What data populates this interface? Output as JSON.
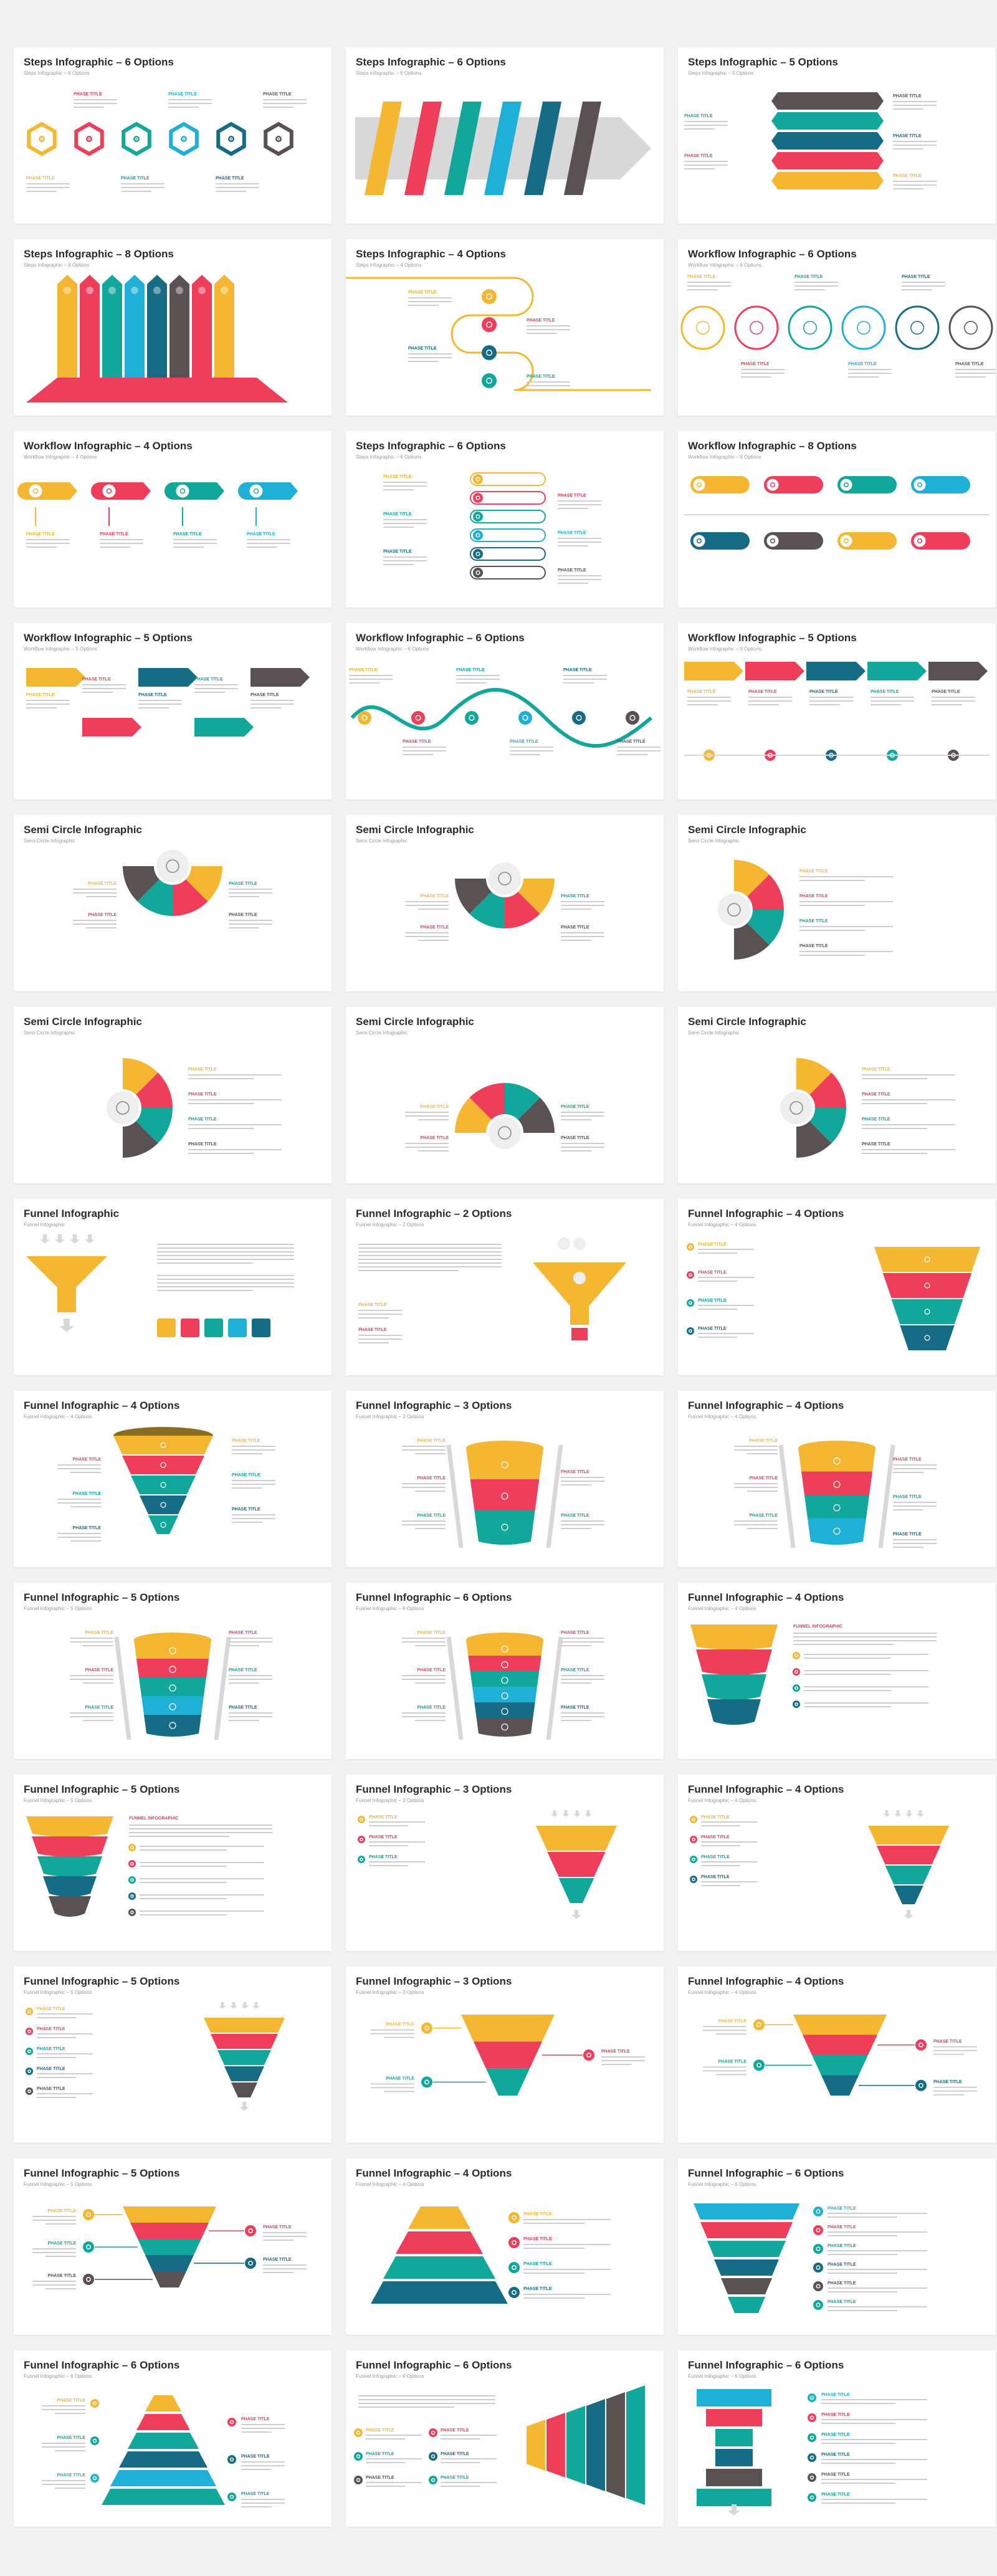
{
  "colors": {
    "yellow": "#f5b731",
    "red": "#ee3e5a",
    "teal": "#11a79a",
    "blue": "#1fb0d8",
    "navy": "#156c84",
    "gray": "#5a5153",
    "lightgray": "#d8d8d8"
  },
  "labels": {
    "phase_title": "PHASE TITLE",
    "funnel_infographic": "FUNNEL INFOGRAPHIC"
  },
  "slides": [
    {
      "title": "Steps Infographic – 6 Options",
      "subtitle": "Steps Infographic – 6 Options",
      "art": "hex-steps"
    },
    {
      "title": "Steps Infographic – 6 Options",
      "subtitle": "Steps Infographic – 6 Options",
      "art": "ribbon-arrow"
    },
    {
      "title": "Steps Infographic – 5 Options",
      "subtitle": "Steps Infographic – 5 Options",
      "art": "stack-bars"
    },
    {
      "title": "Steps Infographic – 8 Options",
      "subtitle": "Steps Infographic – 8 Options",
      "art": "tall-arrows"
    },
    {
      "title": "Steps Infographic – 4 Options",
      "subtitle": "Steps Infographic – 4 Options",
      "art": "snake-numbers"
    },
    {
      "title": "Workflow Infographic – 6 Options",
      "subtitle": "Workflow Infographic – 6 Options",
      "art": "ring-chain"
    },
    {
      "title": "Workflow Infographic – 4 Options",
      "subtitle": "Workflow Infographic – 4 Options",
      "art": "pin-tabs"
    },
    {
      "title": "Steps Infographic – 6 Options",
      "subtitle": "Steps Infographic – 6 Options",
      "art": "snake-six"
    },
    {
      "title": "Workflow Infographic – 8 Options",
      "subtitle": "Workflow Infographic – 8 Options",
      "art": "pill-rows"
    },
    {
      "title": "Workflow Infographic – 5 Options",
      "subtitle": "Workflow Infographic – 5 Options",
      "art": "zigzag-arrows"
    },
    {
      "title": "Workflow Infographic – 6 Options",
      "subtitle": "Workflow Infographic – 6 Options",
      "art": "wave-flow"
    },
    {
      "title": "Workflow Infographic – 5 Options",
      "subtitle": "Workflow Infographic – 5 Options",
      "art": "arrow-row"
    },
    {
      "title": "Semi Circle Infographic",
      "subtitle": "Semi Circle Infographic",
      "art": "semi-down"
    },
    {
      "title": "Semi Circle Infographic",
      "subtitle": "Semi Circle Infographic",
      "art": "semi-down-2"
    },
    {
      "title": "Semi Circle Infographic",
      "subtitle": "Semi Circle Infographic",
      "art": "semi-right"
    },
    {
      "title": "Semi Circle Infographic",
      "subtitle": "Semi Circle Infographic",
      "art": "semi-right-2"
    },
    {
      "title": "Semi Circle Infographic",
      "subtitle": "Semi Circle Infographic",
      "art": "semi-up"
    },
    {
      "title": "Semi Circle Infographic",
      "subtitle": "Semi Circle Infographic",
      "art": "semi-right-3"
    },
    {
      "title": "Funnel Infographic",
      "subtitle": "Funnel Infographic",
      "art": "funnel-pour"
    },
    {
      "title": "Funnel Infographic – 2 Options",
      "subtitle": "Funnel Infographic – 2 Options",
      "art": "funnel-balls"
    },
    {
      "title": "Funnel Infographic – 4 Options",
      "subtitle": "Funnel Infographic – 4 Options",
      "art": "funnel-layers-right"
    },
    {
      "title": "Funnel Infographic – 4 Options",
      "subtitle": "Funnel Infographic – 4 Options",
      "art": "funnel-cone"
    },
    {
      "title": "Funnel Infographic – 3 Options",
      "subtitle": "Funnel Infographic – 3 Options",
      "art": "funnel-cup-3"
    },
    {
      "title": "Funnel Infographic – 4 Options",
      "subtitle": "Funnel Infographic – 4 Options",
      "art": "funnel-cup-4"
    },
    {
      "title": "Funnel Infographic – 5 Options",
      "subtitle": "Funnel Infographic – 5 Options",
      "art": "funnel-cup-5"
    },
    {
      "title": "Funnel Infographic – 6 Options",
      "subtitle": "Funnel Infographic – 6 Options",
      "art": "funnel-cup-6"
    },
    {
      "title": "Funnel Infographic – 4 Options",
      "subtitle": "Funnel Infographic – 4 Options",
      "art": "funnel-shields"
    },
    {
      "title": "Funnel Infographic – 5 Options",
      "subtitle": "Funnel Infographic – 5 Options",
      "art": "funnel-shields-5"
    },
    {
      "title": "Funnel Infographic – 3 Options",
      "subtitle": "Funnel Infographic – 3 Options",
      "art": "funnel-tri-3"
    },
    {
      "title": "Funnel Infographic – 4 Options",
      "subtitle": "Funnel Infographic – 4 Options",
      "art": "funnel-tri-4"
    },
    {
      "title": "Funnel Infographic – 5 Options",
      "subtitle": "Funnel Infographic – 5 Options",
      "art": "funnel-tri-5"
    },
    {
      "title": "Funnel Infographic – 3 Options",
      "subtitle": "Funnel Infographic – 3 Options",
      "art": "funnel-bowl-3"
    },
    {
      "title": "Funnel Infographic – 4 Options",
      "subtitle": "Funnel Infographic – 4 Options",
      "art": "funnel-bowl-4"
    },
    {
      "title": "Funnel Infographic – 5 Options",
      "subtitle": "Funnel Infographic – 5 Options",
      "art": "funnel-bowl-5"
    },
    {
      "title": "Funnel Infographic – 4 Options",
      "subtitle": "Funnel Infographic – 4 Options",
      "art": "pyramid-4"
    },
    {
      "title": "Funnel Infographic – 6 Options",
      "subtitle": "Funnel Infographic – 6 Options",
      "art": "funnel-flat-6"
    },
    {
      "title": "Funnel Infographic – 6 Options",
      "subtitle": "Funnel Infographic – 6 Options",
      "art": "pyramid-6"
    },
    {
      "title": "Funnel Infographic – 6 Options",
      "subtitle": "Funnel Infographic – 6 Options",
      "art": "funnel-sideways"
    },
    {
      "title": "Funnel Infographic – 6 Options",
      "subtitle": "Funnel Infographic – 6 Options",
      "art": "hourglass-6"
    }
  ]
}
